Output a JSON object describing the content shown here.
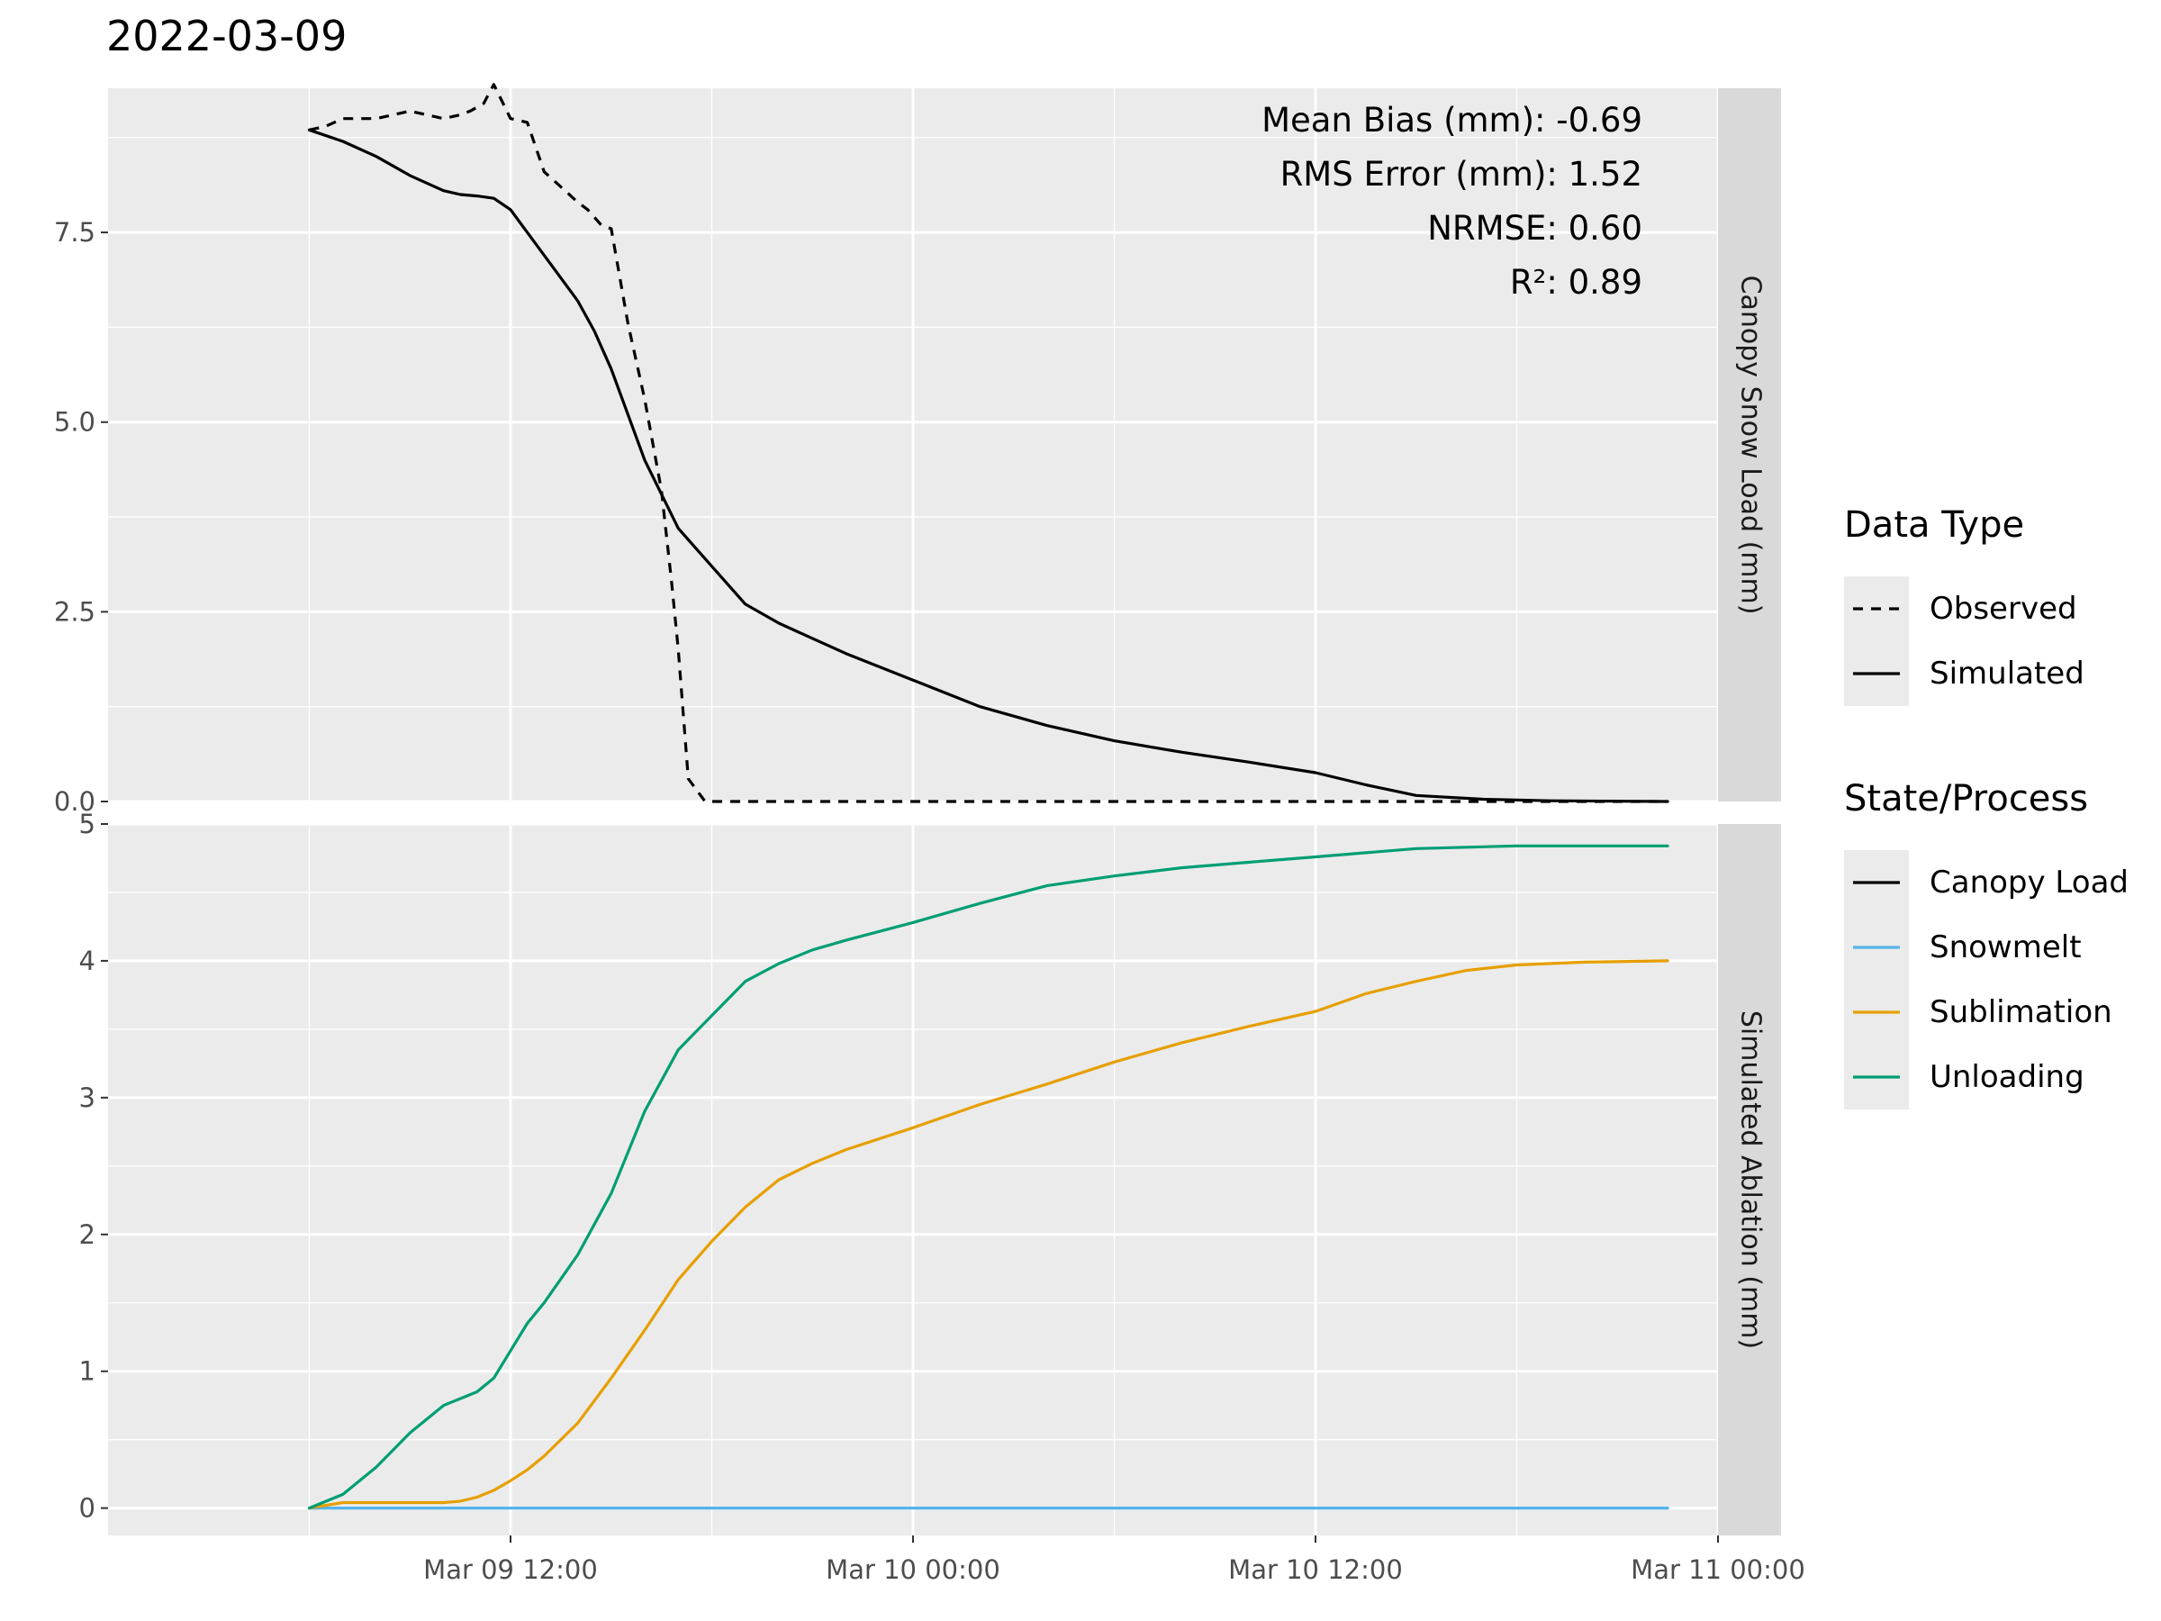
{
  "chart_data": {
    "type": "line",
    "title": "2022-03-09",
    "x_axis": {
      "unit": "hours since Mar 09 00:00",
      "range": [
        0,
        48
      ],
      "ticks": [
        {
          "value": 12,
          "label": "Mar 09 12:00"
        },
        {
          "value": 24,
          "label": "Mar 10 00:00"
        },
        {
          "value": 36,
          "label": "Mar 10 12:00"
        },
        {
          "value": 48,
          "label": "Mar 11 00:00"
        }
      ]
    },
    "panels": [
      {
        "strip": "Canopy Snow Load (mm)",
        "ylim": [
          0,
          9.4
        ],
        "yticks": [
          {
            "value": 0,
            "label": "0.0"
          },
          {
            "value": 2.5,
            "label": "2.5"
          },
          {
            "value": 5,
            "label": "5.0"
          },
          {
            "value": 7.5,
            "label": "7.5"
          }
        ],
        "stats": [
          "Mean Bias (mm): -0.69",
          "RMS Error (mm): 1.52",
          "NRMSE: 0.60",
          "R²: 0.89"
        ],
        "series": [
          {
            "name": "Observed",
            "group": "Data Type",
            "dash": "dashed",
            "color": "#000000",
            "x": [
              6.0,
              6.5,
              7.0,
              8.0,
              8.5,
              9.0,
              9.5,
              10.0,
              10.5,
              10.8,
              11.2,
              11.5,
              12.0,
              12.5,
              13.0,
              13.5,
              14.0,
              14.3,
              14.7,
              15.0,
              15.5,
              16.0,
              16.5,
              16.8,
              17.0,
              17.3,
              17.8,
              19.0,
              24.0,
              30.0,
              36.0,
              42.0,
              46.5
            ],
            "y": [
              8.85,
              8.9,
              9.0,
              9.0,
              9.05,
              9.1,
              9.05,
              9.0,
              9.05,
              9.1,
              9.2,
              9.45,
              9.0,
              8.95,
              8.3,
              8.1,
              7.9,
              7.8,
              7.6,
              7.55,
              6.3,
              5.3,
              4.1,
              2.9,
              2.0,
              0.3,
              0.0,
              0.0,
              0.0,
              0.0,
              0.0,
              0.0,
              0.0
            ]
          },
          {
            "name": "Simulated",
            "group": "Data Type",
            "dash": "solid",
            "color": "#000000",
            "x": [
              6.0,
              7.0,
              8.0,
              9.0,
              10.0,
              10.5,
              11.0,
              11.5,
              12.0,
              12.5,
              13.0,
              14.0,
              14.5,
              15.0,
              16.0,
              17.0,
              18.0,
              19.0,
              20.0,
              21.0,
              22.0,
              24.0,
              26.0,
              28.0,
              30.0,
              32.0,
              34.0,
              36.0,
              37.5,
              39.0,
              41.0,
              43.0,
              46.5
            ],
            "y": [
              8.85,
              8.7,
              8.5,
              8.25,
              8.05,
              8.0,
              7.98,
              7.95,
              7.8,
              7.5,
              7.2,
              6.6,
              6.2,
              5.7,
              4.5,
              3.6,
              3.1,
              2.6,
              2.35,
              2.15,
              1.95,
              1.6,
              1.25,
              1.0,
              0.8,
              0.65,
              0.52,
              0.38,
              0.22,
              0.08,
              0.03,
              0.01,
              0.0
            ]
          }
        ]
      },
      {
        "strip": "Simulated Ablation (mm)",
        "ylim": [
          -0.2,
          5.0
        ],
        "yticks": [
          {
            "value": 0,
            "label": "0"
          },
          {
            "value": 1,
            "label": "1"
          },
          {
            "value": 2,
            "label": "2"
          },
          {
            "value": 3,
            "label": "3"
          },
          {
            "value": 4,
            "label": "4"
          },
          {
            "value": 5,
            "label": "5"
          }
        ],
        "series": [
          {
            "name": "Snowmelt",
            "group": "State/Process",
            "color": "#56B4E9",
            "x": [
              6.0,
              46.5
            ],
            "y": [
              0.0,
              0.0
            ]
          },
          {
            "name": "Sublimation",
            "group": "State/Process",
            "color": "#E69F00",
            "x": [
              6.0,
              7.0,
              8.0,
              9.0,
              10.0,
              10.5,
              11.0,
              11.5,
              12.0,
              12.5,
              13.0,
              14.0,
              15.0,
              16.0,
              17.0,
              18.0,
              19.0,
              20.0,
              21.0,
              22.0,
              24.0,
              26.0,
              28.0,
              30.0,
              32.0,
              34.0,
              36.0,
              37.5,
              39.0,
              40.5,
              42.0,
              44.0,
              46.5
            ],
            "y": [
              0.0,
              0.04,
              0.04,
              0.04,
              0.04,
              0.05,
              0.08,
              0.13,
              0.2,
              0.28,
              0.38,
              0.62,
              0.95,
              1.3,
              1.67,
              1.95,
              2.2,
              2.4,
              2.52,
              2.62,
              2.78,
              2.95,
              3.1,
              3.26,
              3.4,
              3.52,
              3.63,
              3.76,
              3.85,
              3.93,
              3.97,
              3.99,
              4.0
            ]
          },
          {
            "name": "Unloading",
            "group": "State/Process",
            "color": "#009E73",
            "x": [
              6.0,
              7.0,
              8.0,
              9.0,
              10.0,
              10.5,
              11.0,
              11.5,
              12.0,
              12.5,
              13.0,
              14.0,
              15.0,
              16.0,
              17.0,
              18.0,
              19.0,
              20.0,
              21.0,
              22.0,
              24.0,
              26.0,
              28.0,
              30.0,
              32.0,
              34.0,
              36.0,
              37.5,
              39.0,
              40.5,
              42.0,
              44.0,
              46.5
            ],
            "y": [
              0.0,
              0.1,
              0.3,
              0.55,
              0.75,
              0.8,
              0.85,
              0.95,
              1.15,
              1.35,
              1.5,
              1.85,
              2.3,
              2.9,
              3.35,
              3.6,
              3.85,
              3.98,
              4.08,
              4.15,
              4.28,
              4.42,
              4.55,
              4.62,
              4.68,
              4.72,
              4.76,
              4.79,
              4.82,
              4.83,
              4.84,
              4.84,
              4.84
            ]
          }
        ]
      }
    ],
    "legends": [
      {
        "title": "Data Type",
        "entries": [
          {
            "label": "Observed",
            "dash": "dashed",
            "color": "#000000"
          },
          {
            "label": "Simulated",
            "dash": "solid",
            "color": "#000000"
          }
        ]
      },
      {
        "title": "State/Process",
        "entries": [
          {
            "label": "Canopy Load",
            "dash": "solid",
            "color": "#000000"
          },
          {
            "label": "Snowmelt",
            "dash": "solid",
            "color": "#56B4E9"
          },
          {
            "label": "Sublimation",
            "dash": "solid",
            "color": "#E69F00"
          },
          {
            "label": "Unloading",
            "dash": "solid",
            "color": "#009E73"
          }
        ]
      }
    ],
    "grid": true,
    "legend_position": "right"
  }
}
